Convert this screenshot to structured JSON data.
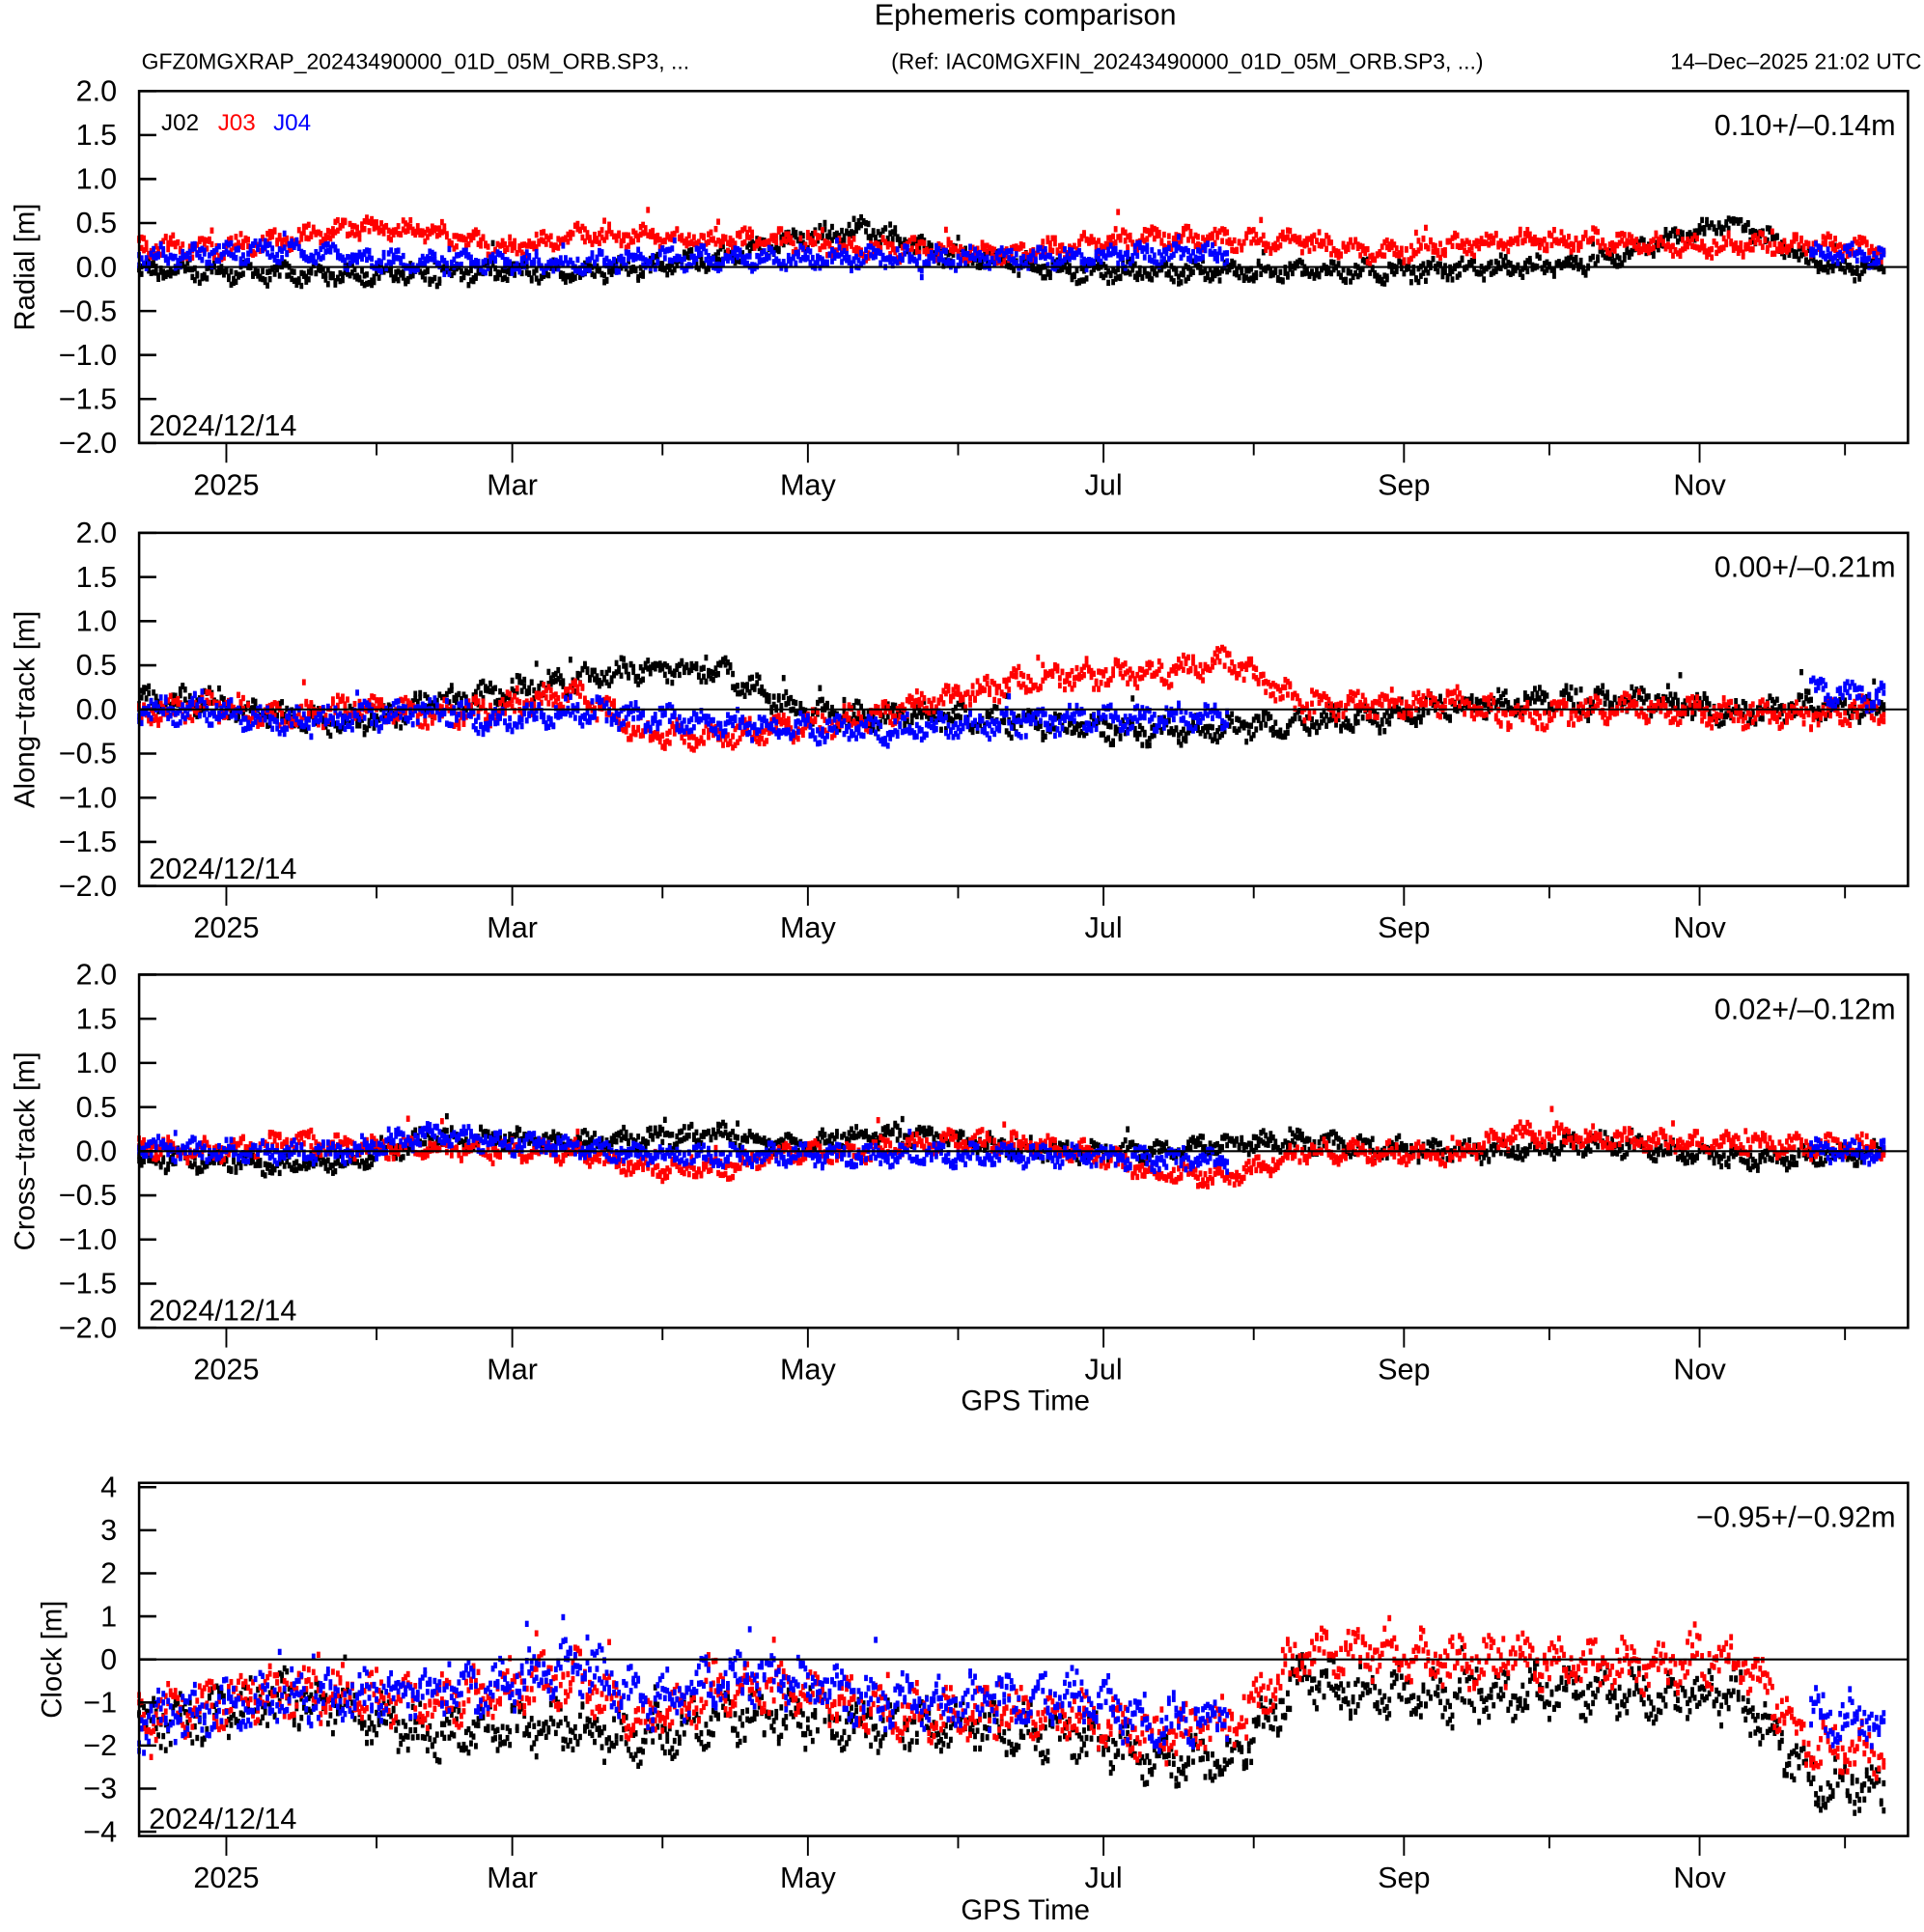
{
  "title": "Ephemeris comparison",
  "subtitle_left": "GFZ0MGXRAP_20243490000_01D_05M_ORB.SP3, ...",
  "subtitle_ref": "(Ref: IAC0MGXFIN_20243490000_01D_05M_ORB.SP3, ...)",
  "subtitle_date": "14–Dec–2025 21:02 UTC",
  "legend": [
    {
      "name": "J02",
      "color": "#000000"
    },
    {
      "name": "J03",
      "color": "#ff0000"
    },
    {
      "name": "J04",
      "color": "#0000ff"
    }
  ],
  "x_axis": {
    "start_date": "2024/12/14",
    "range_days": [
      0,
      365
    ],
    "major_ticks": [
      {
        "day": 18,
        "label": "2025"
      },
      {
        "day": 77,
        "label": "Mar"
      },
      {
        "day": 138,
        "label": "May"
      },
      {
        "day": 199,
        "label": "Jul"
      },
      {
        "day": 261,
        "label": "Sep"
      },
      {
        "day": 322,
        "label": "Nov"
      }
    ],
    "minor_ticks_days": [
      49,
      108,
      169,
      230,
      291,
      352
    ],
    "xlabel": "GPS Time"
  },
  "chart_data": [
    {
      "type": "scatter",
      "ylabel": "Radial [m]",
      "stat": "0.10+/–0.14m",
      "date_label": "2024/12/14",
      "ylim": [
        -2.0,
        2.0
      ],
      "yticks": [
        "2.0",
        "1.5",
        "1.0",
        "0.5",
        "0.0",
        "−0.5",
        "−1.0",
        "−1.5",
        "−2.0"
      ],
      "ytick_values": [
        2.0,
        1.5,
        1.0,
        0.5,
        0.0,
        -0.5,
        -1.0,
        -1.5,
        -2.0
      ],
      "sample_days": [
        0,
        15,
        30,
        45,
        60,
        75,
        90,
        105,
        120,
        135,
        150,
        165,
        180,
        195,
        210,
        225,
        240,
        255,
        270,
        285,
        300,
        315,
        330,
        345,
        360
      ],
      "spread": 0.12,
      "series": [
        {
          "name": "J02",
          "values": [
            -0.05,
            -0.05,
            -0.08,
            -0.08,
            -0.08,
            -0.05,
            -0.05,
            0,
            0.1,
            0.3,
            0.45,
            0.15,
            0.05,
            -0.05,
            -0.05,
            -0.05,
            -0.05,
            -0.05,
            -0.02,
            0,
            0.05,
            0.3,
            0.5,
            0.05,
            -0.05
          ]
        },
        {
          "name": "J03",
          "values": [
            0.25,
            0.2,
            0.3,
            0.45,
            0.4,
            0.2,
            0.35,
            0.35,
            0.3,
            0.3,
            0.2,
            0.2,
            0.15,
            0.25,
            0.35,
            0.3,
            0.3,
            0.15,
            0.25,
            0.3,
            0.3,
            0.25,
            0.25,
            0.25,
            0.2
          ]
        },
        {
          "name": "J04",
          "values": [
            0.1,
            0.15,
            0.2,
            0.1,
            0.05,
            0.05,
            0.05,
            0.1,
            0.1,
            0.1,
            0.1,
            0.1,
            0.1,
            0.1,
            0.15,
            0.15,
            null,
            null,
            null,
            null,
            null,
            null,
            null,
            0.15,
            0.1
          ]
        }
      ]
    },
    {
      "type": "scatter",
      "ylabel": "Along−track [m]",
      "stat": "0.00+/–0.21m",
      "date_label": "2024/12/14",
      "ylim": [
        -2.0,
        2.0
      ],
      "yticks": [
        "2.0",
        "1.5",
        "1.0",
        "0.5",
        "0.0",
        "−0.5",
        "−1.0",
        "−1.5",
        "−2.0"
      ],
      "ytick_values": [
        2.0,
        1.5,
        1.0,
        0.5,
        0.0,
        -0.5,
        -1.0,
        -1.5,
        -2.0
      ],
      "sample_days": [
        0,
        15,
        30,
        45,
        60,
        75,
        90,
        105,
        120,
        135,
        150,
        165,
        180,
        195,
        210,
        225,
        240,
        255,
        270,
        285,
        300,
        315,
        330,
        345,
        360
      ],
      "spread": 0.15,
      "series": [
        {
          "name": "J02",
          "values": [
            0.1,
            0.1,
            -0.1,
            -0.15,
            0.05,
            0.2,
            0.35,
            0.45,
            0.45,
            0.0,
            -0.1,
            -0.05,
            -0.15,
            -0.2,
            -0.25,
            -0.2,
            -0.15,
            -0.1,
            0.05,
            0.1,
            0.1,
            0.1,
            -0.05,
            0.05,
            0.0
          ]
        },
        {
          "name": "J03",
          "values": [
            -0.05,
            0.05,
            -0.1,
            0.05,
            -0.05,
            0.0,
            0.2,
            -0.3,
            -0.3,
            -0.2,
            -0.1,
            0.1,
            0.3,
            0.4,
            0.4,
            0.55,
            0.05,
            0.05,
            0.1,
            -0.1,
            0.0,
            0.0,
            -0.05,
            -0.05,
            0.0
          ]
        },
        {
          "name": "J04",
          "values": [
            0.0,
            0.0,
            -0.15,
            -0.1,
            0.0,
            -0.15,
            0.0,
            -0.1,
            -0.15,
            -0.2,
            -0.25,
            -0.2,
            -0.15,
            -0.1,
            -0.1,
            -0.05,
            null,
            null,
            null,
            null,
            null,
            null,
            null,
            0.2,
            0.15
          ]
        }
      ]
    },
    {
      "type": "scatter",
      "ylabel": "Cross−track [m]",
      "stat": "0.02+/–0.12m",
      "date_label": "2024/12/14",
      "ylim": [
        -2.0,
        2.0
      ],
      "yticks": [
        "2.0",
        "1.5",
        "1.0",
        "0.5",
        "0.0",
        "−0.5",
        "−1.0",
        "−1.5",
        "−2.0"
      ],
      "ytick_values": [
        2.0,
        1.5,
        1.0,
        0.5,
        0.0,
        -0.5,
        -1.0,
        -1.5,
        -2.0
      ],
      "sample_days": [
        0,
        15,
        30,
        45,
        60,
        75,
        90,
        105,
        120,
        135,
        150,
        165,
        180,
        195,
        210,
        225,
        240,
        255,
        270,
        285,
        300,
        315,
        330,
        345,
        360
      ],
      "spread": 0.12,
      "series": [
        {
          "name": "J02",
          "values": [
            -0.1,
            -0.1,
            -0.15,
            -0.1,
            0.15,
            0.15,
            0.1,
            0.15,
            0.2,
            0.05,
            0.2,
            0.15,
            0.05,
            0.0,
            0.0,
            0.1,
            0.1,
            0.05,
            0.0,
            0.0,
            0.1,
            0.0,
            -0.1,
            -0.05,
            0.0
          ]
        },
        {
          "name": "J03",
          "values": [
            0.05,
            0.0,
            0.1,
            0.05,
            0.05,
            0.0,
            0.0,
            -0.2,
            -0.2,
            0.0,
            0.0,
            0.1,
            0.1,
            0.0,
            -0.25,
            -0.3,
            0.0,
            0.0,
            -0.05,
            0.2,
            0.15,
            0.1,
            0.1,
            0.05,
            0.05
          ]
        },
        {
          "name": "J04",
          "values": [
            0.05,
            0.0,
            0.0,
            0.0,
            0.2,
            0.1,
            0.05,
            -0.05,
            -0.05,
            -0.05,
            -0.05,
            -0.05,
            -0.05,
            -0.05,
            -0.1,
            -0.1,
            null,
            null,
            null,
            null,
            null,
            null,
            null,
            0.0,
            0.0
          ]
        }
      ]
    },
    {
      "type": "scatter",
      "ylabel": "Clock [m]",
      "stat": "−0.95+/−0.92m",
      "date_label": "2024/12/14",
      "ylim": [
        -4.1,
        4.1
      ],
      "yticks": [
        "4",
        "3",
        "2",
        "1",
        "0",
        "−1",
        "−2",
        "−3",
        "−4"
      ],
      "ytick_values": [
        4,
        3,
        2,
        1,
        0,
        -1,
        -2,
        -3,
        -4
      ],
      "sample_days": [
        0,
        15,
        30,
        45,
        60,
        75,
        90,
        105,
        120,
        135,
        150,
        165,
        180,
        195,
        210,
        225,
        240,
        255,
        270,
        285,
        300,
        315,
        330,
        345,
        360
      ],
      "spread": 0.6,
      "series": [
        {
          "name": "J02",
          "values": [
            -1.5,
            -1.3,
            -0.9,
            -1.2,
            -1.8,
            -1.5,
            -1.6,
            -1.8,
            -1.3,
            -1.4,
            -1.5,
            -1.5,
            -1.6,
            -1.8,
            -2.3,
            -2.3,
            -0.5,
            -0.8,
            -0.9,
            -0.8,
            -0.7,
            -0.9,
            -0.8,
            -2.8,
            -3.0
          ]
        },
        {
          "name": "J03",
          "values": [
            -1.3,
            -1.0,
            -0.7,
            -0.8,
            -1.0,
            -0.7,
            -0.4,
            -1.5,
            -0.6,
            -0.8,
            -1.1,
            -1.3,
            -1.2,
            -1.3,
            -1.8,
            -1.5,
            0.1,
            0.2,
            -0.1,
            0.0,
            -0.2,
            -0.1,
            0.1,
            -2.0,
            -2.2
          ]
        },
        {
          "name": "J04",
          "values": [
            -1.5,
            -1.2,
            -0.8,
            -0.9,
            -0.7,
            -0.6,
            -0.1,
            -1.0,
            -0.4,
            -0.5,
            -0.9,
            -1.0,
            -0.9,
            -0.9,
            -1.5,
            -1.2,
            null,
            null,
            null,
            null,
            null,
            null,
            null,
            -1.2,
            -1.5
          ]
        }
      ]
    }
  ]
}
